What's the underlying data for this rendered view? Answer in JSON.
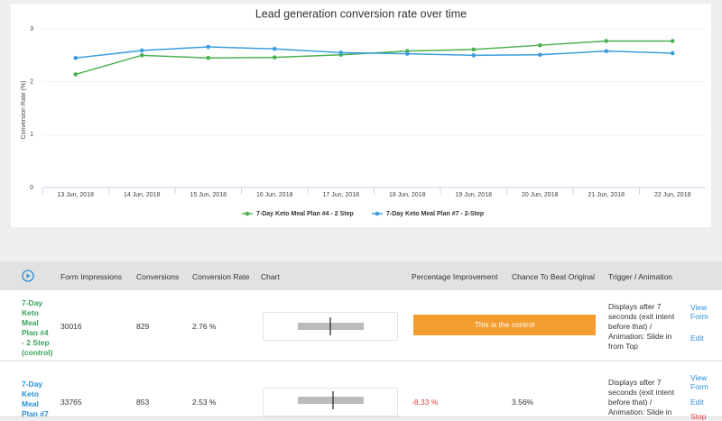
{
  "chart_data": {
    "type": "line",
    "title": "Lead generation conversion rate over time",
    "y_label": "Conversion Rate (%)",
    "categories": [
      "13 Jun, 2018",
      "14 Jun, 2018",
      "15 Jun, 2018",
      "16 Jun, 2018",
      "17 Jun, 2018",
      "18 Jun, 2018",
      "19 Jun, 2018",
      "20 Jun, 2018",
      "21 Jun, 2018",
      "22 Jun, 2018"
    ],
    "series": [
      {
        "name": "7-Day Keto Meal Plan #4 - 2 Step",
        "color": "#4caf50",
        "values": [
          2.14,
          2.5,
          2.45,
          2.46,
          2.51,
          2.58,
          2.61,
          2.69,
          2.77,
          2.77
        ]
      },
      {
        "name": "7-Day Keto Meal Plan #7 - 2-Step",
        "color": "#3b9ddd",
        "values": [
          2.45,
          2.59,
          2.66,
          2.62,
          2.55,
          2.53,
          2.5,
          2.51,
          2.58,
          2.54
        ]
      }
    ],
    "ylim": [
      0,
      3
    ],
    "yticks": [
      0,
      1,
      2,
      3
    ],
    "grid": true,
    "legend": "bottom"
  },
  "table": {
    "headers": [
      "Form Impressions",
      "Conversions",
      "Conversion Rate",
      "Chart",
      "Percentage Improvement",
      "Chance To Beat Original",
      "Trigger / Animation"
    ],
    "rows": [
      {
        "name": "7-Day Keto Meal Plan #4 - 2 Step (control)",
        "impressions": 30016,
        "conversions": 829,
        "rate": "2.76 %",
        "improvement": "This is the control",
        "chance": null,
        "trigger": "Displays after 7 seconds (exit intent before that) / Animation: Slide in from Top",
        "actions": [
          "View Form",
          "Edit"
        ]
      },
      {
        "name": "7-Day Keto Meal Plan #7",
        "impressions": 33765,
        "conversions": 853,
        "rate": "2.53 %",
        "improvement": "-8.33 %",
        "chance": "3.56%",
        "trigger": "Displays after 7 seconds (exit intent before that) / Animation: Slide in",
        "actions": [
          "View Form",
          "Edit",
          "Stop"
        ]
      }
    ]
  }
}
